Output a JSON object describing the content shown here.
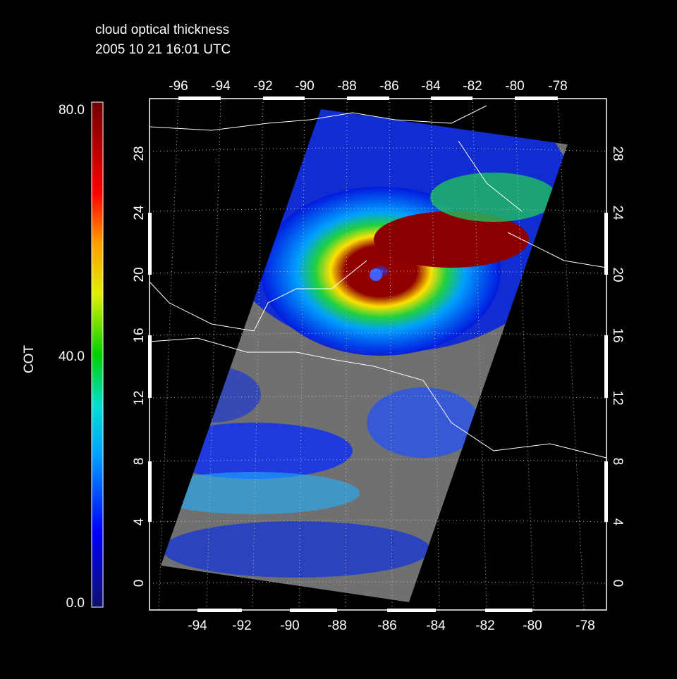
{
  "title": [
    "cloud optical thickness",
    "2005 10 21 16:01 UTC"
  ],
  "colorbar": {
    "label": "COT",
    "ticks": [
      "80.0",
      "40.0",
      "0.0"
    ]
  },
  "axes": {
    "top": [
      "-96",
      "-94",
      "-92",
      "-90",
      "-88",
      "-86",
      "-84",
      "-82",
      "-80",
      "-78"
    ],
    "bottom": [
      "-94",
      "-92",
      "-90",
      "-88",
      "-86",
      "-84",
      "-82",
      "-80",
      "-78"
    ],
    "left": [
      "28",
      "24",
      "20",
      "16",
      "12",
      "8",
      "4",
      "0"
    ],
    "right": [
      "28",
      "24",
      "20",
      "16",
      "12",
      "8",
      "4",
      "0"
    ]
  }
}
